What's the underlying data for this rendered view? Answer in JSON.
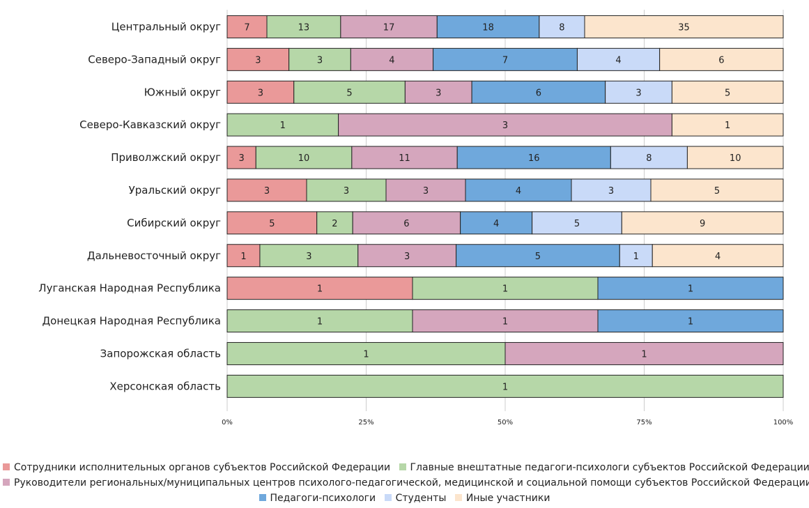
{
  "chart_data": {
    "type": "bar",
    "orientation": "horizontal",
    "stacked": "percent",
    "categories": [
      "Центральный округ",
      "Северо-Западный округ",
      "Южный округ",
      "Северо-Кавказский округ",
      "Приволжский округ",
      "Уральский округ",
      "Сибирский округ",
      "Дальневосточный округ",
      "Луганская Народная Республика",
      "Донецкая Народная Республика",
      "Запорожская область",
      "Херсонская область"
    ],
    "series": [
      {
        "name": "Сотрудники исполнительных органов субъектов Российской Федерации",
        "color": "#ea9999",
        "values": [
          7,
          3,
          3,
          0,
          3,
          3,
          5,
          1,
          1,
          0,
          0,
          0
        ]
      },
      {
        "name": "Главные внештатные педагоги-психологи субъектов Российской Федерации",
        "color": "#b6d7a8",
        "values": [
          13,
          3,
          5,
          1,
          10,
          3,
          2,
          3,
          1,
          1,
          1,
          1
        ]
      },
      {
        "name": "Руководители региональных/муниципальных центров психолого-педагогической, медицинской и социальной помощи субъектов Российской Федерации",
        "color": "#d5a6bd",
        "values": [
          17,
          4,
          3,
          3,
          11,
          3,
          6,
          3,
          0,
          1,
          1,
          0
        ]
      },
      {
        "name": "Педагоги-психологи",
        "color": "#6fa8dc",
        "values": [
          18,
          7,
          6,
          0,
          16,
          4,
          4,
          5,
          1,
          1,
          0,
          0
        ]
      },
      {
        "name": "Студенты",
        "color": "#c9daf8",
        "values": [
          8,
          4,
          3,
          0,
          8,
          3,
          5,
          1,
          0,
          0,
          0,
          0
        ]
      },
      {
        "name": "Иные участники",
        "color": "#fce5cd",
        "values": [
          35,
          6,
          5,
          1,
          10,
          5,
          9,
          4,
          0,
          0,
          0,
          0
        ]
      }
    ],
    "xlim": [
      0,
      100
    ],
    "xticks": [
      "0%",
      "25%",
      "50%",
      "75%",
      "100%"
    ],
    "grid": true,
    "legend_position": "bottom"
  }
}
